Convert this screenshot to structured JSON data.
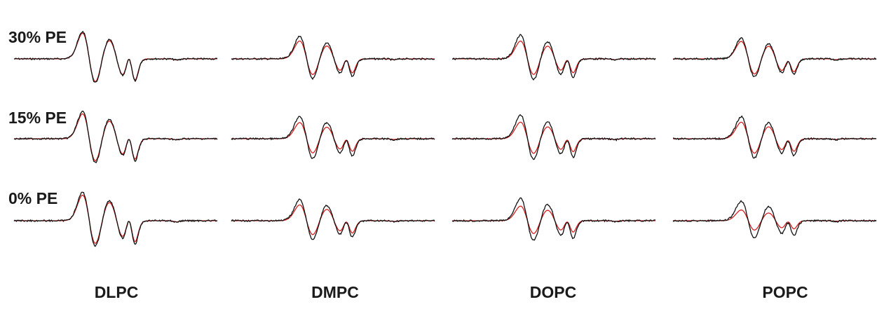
{
  "chart_data": {
    "type": "line",
    "rows": [
      "30% PE",
      "15% PE",
      "0% PE"
    ],
    "columns": [
      "DLPC",
      "DMPC",
      "DOPC",
      "POPC"
    ],
    "series_colors": {
      "black": "#111111",
      "red": "#d62020"
    },
    "spectra": [
      [
        {
          "amp": 1.0,
          "redScale": 0.95,
          "sharp": 1.0
        },
        {
          "amp": 0.85,
          "redScale": 0.8,
          "sharp": 0.9
        },
        {
          "amp": 0.9,
          "redScale": 0.75,
          "sharp": 0.9
        },
        {
          "amp": 0.8,
          "redScale": 0.85,
          "sharp": 0.8
        }
      ],
      [
        {
          "amp": 1.0,
          "redScale": 0.92,
          "sharp": 1.0
        },
        {
          "amp": 0.85,
          "redScale": 0.72,
          "sharp": 0.9
        },
        {
          "amp": 0.9,
          "redScale": 0.7,
          "sharp": 0.9
        },
        {
          "amp": 0.85,
          "redScale": 0.75,
          "sharp": 0.85
        }
      ],
      [
        {
          "amp": 1.05,
          "redScale": 0.9,
          "sharp": 1.0
        },
        {
          "amp": 0.8,
          "redScale": 0.75,
          "sharp": 0.9
        },
        {
          "amp": 0.85,
          "redScale": 0.65,
          "sharp": 0.9
        },
        {
          "amp": 0.75,
          "redScale": 0.55,
          "sharp": 0.85
        }
      ]
    ]
  }
}
